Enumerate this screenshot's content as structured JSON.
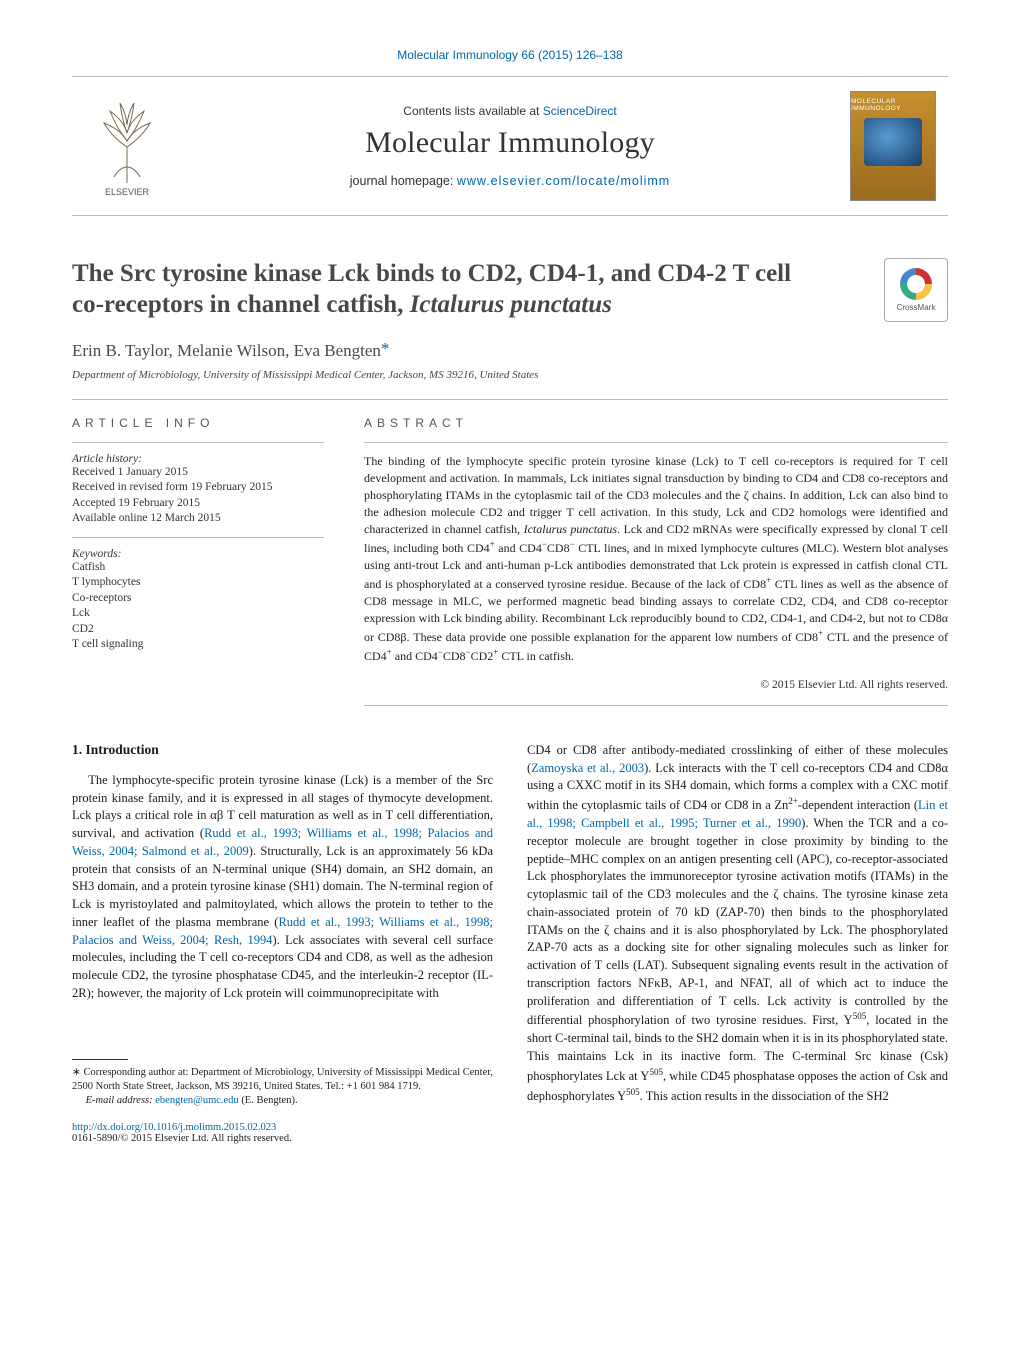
{
  "running_head": "Molecular Immunology 66 (2015) 126–138",
  "header": {
    "contents_prefix": "Contents lists available at ",
    "contents_link": "ScienceDirect",
    "journal_name": "Molecular Immunology",
    "homepage_prefix": "journal homepage: ",
    "homepage_link": "www.elsevier.com/locate/molimm",
    "elsevier_label": "ELSEVIER",
    "cover_title": "MOLECULAR IMMUNOLOGY"
  },
  "crossmark_label": "CrossMark",
  "title_main": "The Src tyrosine kinase Lck binds to CD2, CD4-1, and CD4-2 T cell co-receptors in channel catfish, ",
  "title_ital": "Ictalurus punctatus",
  "authors": "Erin B. Taylor, Melanie Wilson, Eva Bengten",
  "affiliation": "Department of Microbiology, University of Mississippi Medical Center, Jackson, MS 39216, United States",
  "article_info_head": "ARTICLE INFO",
  "abstract_head": "ABSTRACT",
  "history_label": "Article history:",
  "history": [
    "Received 1 January 2015",
    "Received in revised form 19 February 2015",
    "Accepted 19 February 2015",
    "Available online 12 March 2015"
  ],
  "keywords_label": "Keywords:",
  "keywords": [
    "Catfish",
    "T lymphocytes",
    "Co-receptors",
    "Lck",
    "CD2",
    "T cell signaling"
  ],
  "abstract_html": "The binding of the lymphocyte specific protein tyrosine kinase (Lck) to T cell co-receptors is required for T cell development and activation. In mammals, Lck initiates signal transduction by binding to CD4 and CD8 co-receptors and phosphorylating ITAMs in the cytoplasmic tail of the CD3 molecules and the ζ chains. In addition, Lck can also bind to the adhesion molecule CD2 and trigger T cell activation. In this study, Lck and CD2 homologs were identified and characterized in channel catfish, <i>Ictalurus punctatus</i>. Lck and CD2 mRNAs were specifically expressed by clonal T cell lines, including both CD4<sup>+</sup> and CD4<sup>−</sup>CD8<sup>−</sup> CTL lines, and in mixed lymphocyte cultures (MLC). Western blot analyses using anti-trout Lck and anti-human p-Lck antibodies demonstrated that Lck protein is expressed in catfish clonal CTL and is phosphorylated at a conserved tyrosine residue. Because of the lack of CD8<sup>+</sup> CTL lines as well as the absence of CD8 message in MLC, we performed magnetic bead binding assays to correlate CD2, CD4, and CD8 co-receptor expression with Lck binding ability. Recombinant Lck reproducibly bound to CD2, CD4-1, and CD4-2, but not to CD8α or CD8β. These data provide one possible explanation for the apparent low numbers of CD8<sup>+</sup> CTL and the presence of CD4<sup>+</sup> and CD4<sup>−</sup>CD8<sup>−</sup>CD2<sup>+</sup> CTL in catfish.",
  "copyright": "© 2015 Elsevier Ltd. All rights reserved.",
  "intro_head": "1. Introduction",
  "intro_para": "The lymphocyte-specific protein tyrosine kinase (Lck) is a member of the Src protein kinase family, and it is expressed in all stages of thymocyte development. Lck plays a critical role in αβ T cell maturation as well as in T cell differentiation, survival, and activation (<span class=\"cite\">Rudd et al., 1993; Williams et al., 1998; Palacios and Weiss, 2004; Salmond et al., 2009</span>). Structurally, Lck is an approximately 56 kDa protein that consists of an N-terminal unique (SH4) domain, an SH2 domain, an SH3 domain, and a protein tyrosine kinase (SH1) domain. The N-terminal region of Lck is myristoylated and palmitoylated, which allows the protein to tether to the inner leaflet of the plasma membrane (<span class=\"cite\">Rudd et al., 1993; Williams et al., 1998; Palacios and Weiss, 2004; Resh, 1994</span>). Lck associates with several cell surface molecules, including the T cell co-receptors CD4 and CD8, as well as the adhesion molecule CD2, the tyrosine phosphatase CD45, and the interleukin-2 receptor (IL-2R); however, the majority of Lck protein will coimmunoprecipitate with",
  "col2_para": "CD4 or CD8 after antibody-mediated crosslinking of either of these molecules (<span class=\"cite\">Zamoyska et al., 2003</span>). Lck interacts with the T cell co-receptors CD4 and CD8α using a CXXC motif in its SH4 domain, which forms a complex with a CXC motif within the cytoplasmic tails of CD4 or CD8 in a Zn<sup>2+</sup>-dependent interaction (<span class=\"cite\">Lin et al., 1998; Campbell et al., 1995; Turner et al., 1990</span>). When the TCR and a co-receptor molecule are brought together in close proximity by binding to the peptide–MHC complex on an antigen presenting cell (APC), co-receptor-associated Lck phosphorylates the immunoreceptor tyrosine activation motifs (ITAMs) in the cytoplasmic tail of the CD3 molecules and the ζ chains. The tyrosine kinase zeta chain-associated protein of 70 kD (ZAP-70) then binds to the phosphorylated ITAMs on the ζ chains and it is also phosphorylated by Lck. The phosphorylated ZAP-70 acts as a docking site for other signaling molecules such as linker for activation of T cells (LAT). Subsequent signaling events result in the activation of transcription factors NFκB, AP-1, and NFAT, all of which act to induce the proliferation and differentiation of T cells. Lck activity is controlled by the differential phosphorylation of two tyrosine residues. First, Y<sup>505</sup>, located in the short C-terminal tail, binds to the SH2 domain when it is in its phosphorylated state. This maintains Lck in its inactive form. The C-terminal Src kinase (Csk) phosphorylates Lck at Y<sup>505</sup>, while CD45 phosphatase opposes the action of Csk and dephosphorylates Y<sup>505</sup>. This action results in the dissociation of the SH2",
  "footnote_corr": "Corresponding author at: Department of Microbiology, University of Mississippi Medical Center, 2500 North State Street, Jackson, MS 39216, United States. Tel.: +1 601 984 1719.",
  "footnote_email_label": "E-mail address:",
  "footnote_email": "ebengten@umc.edu",
  "footnote_email_name": "(E. Bengten).",
  "doi": "http://dx.doi.org/10.1016/j.molimm.2015.02.023",
  "issn_line": "0161-5890/© 2015 Elsevier Ltd. All rights reserved.",
  "colors": {
    "link": "#0066aa",
    "text": "#1a1a1a",
    "rule": "#bbbbbb"
  }
}
